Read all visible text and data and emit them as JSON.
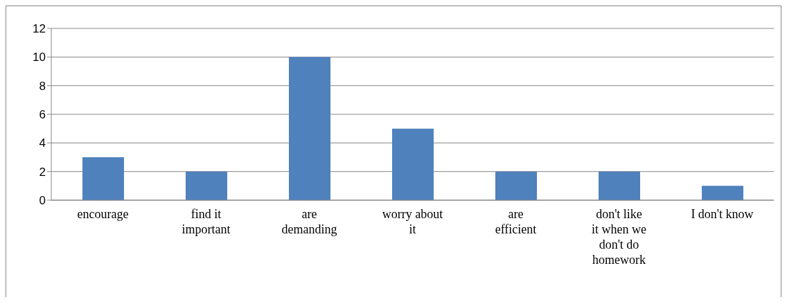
{
  "chart_data": {
    "type": "bar",
    "categories": [
      "encourage",
      "find it important",
      "are demanding",
      "worry about it",
      "are efficient",
      "don't like it when we don't do homework",
      "I don't know"
    ],
    "values": [
      3,
      2,
      10,
      5,
      2,
      2,
      1
    ],
    "color": "#4f81bd",
    "ylim": [
      0,
      12
    ],
    "yticks": [
      0,
      2,
      4,
      6,
      8,
      10,
      12
    ],
    "grid": "y"
  }
}
